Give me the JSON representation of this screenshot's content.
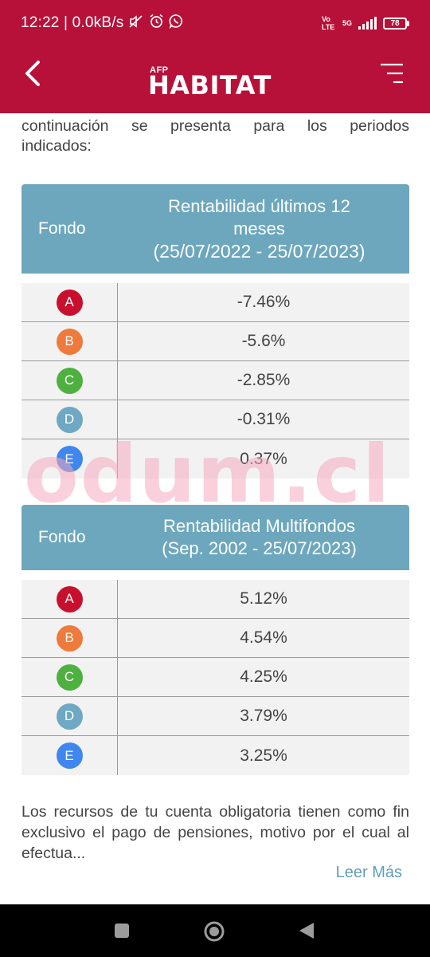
{
  "status_bar": {
    "time": "12:22 | 0.0kB/s",
    "network_label": "Vo LTE",
    "network_gen": "5G",
    "battery": "78"
  },
  "app_bar": {
    "logo_small": "AFP",
    "logo_name": "HABITAT"
  },
  "intro": {
    "line1": "continuación se presenta para los periodos",
    "line2": "indicados:"
  },
  "table1": {
    "header_fund": "Fondo",
    "header_line1": "Rentabilidad últimos 12",
    "header_line2": "meses",
    "header_line3": "(25/07/2022 - 25/07/2023)",
    "rows": [
      {
        "fund": "A",
        "value": "-7.46%"
      },
      {
        "fund": "B",
        "value": "-5.6%"
      },
      {
        "fund": "C",
        "value": "-2.85%"
      },
      {
        "fund": "D",
        "value": "-0.31%"
      },
      {
        "fund": "E",
        "value": "0.37%"
      }
    ]
  },
  "table2": {
    "header_fund": "Fondo",
    "header_line1": "Rentabilidad Multifondos",
    "header_line2": "(Sep. 2002 - 25/07/2023)",
    "rows": [
      {
        "fund": "A",
        "value": "5.12%"
      },
      {
        "fund": "B",
        "value": "4.54%"
      },
      {
        "fund": "C",
        "value": "4.25%"
      },
      {
        "fund": "D",
        "value": "3.79%"
      },
      {
        "fund": "E",
        "value": "3.25%"
      }
    ]
  },
  "fund_colors": {
    "A": "#c8102e",
    "B": "#ee7a3c",
    "C": "#4db03f",
    "D": "#6ea8c2",
    "E": "#3f86ee"
  },
  "footer": {
    "text": "Los recursos de tu cuenta obligatoria tienen como fin exclusivo el pago de pensiones, motivo por el cual al efectua...",
    "read_more": "Leer Más"
  },
  "watermark": "odum.cl",
  "colors": {
    "brand": "#b71139",
    "table_header": "#6da7be",
    "link": "#5f9fb8"
  },
  "icons": {
    "back": "chevron-left-icon",
    "menu": "menu-icon"
  }
}
